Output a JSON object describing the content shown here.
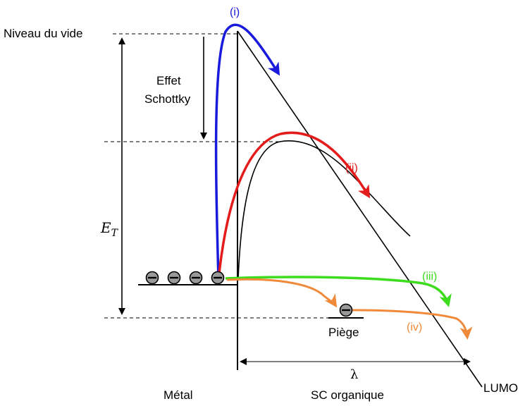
{
  "labels": {
    "vacuum_level": "Niveau du vide",
    "schottky_line1": "Effet",
    "schottky_line2": "Schottky",
    "energy_symbol": "E",
    "energy_subscript": "T",
    "trap": "Piège",
    "lambda": "λ",
    "lumo": "LUMO",
    "metal": "Métal",
    "organic_sc": "SC organique"
  },
  "processes": {
    "i": {
      "label": "(i)",
      "color": "#1a1adc"
    },
    "ii": {
      "label": "(ii)",
      "color": "#e41b1b"
    },
    "iii": {
      "label": "(iii)",
      "color": "#3ddc1e"
    },
    "iv": {
      "label": "(iv)",
      "color": "#f08a3a"
    }
  },
  "electron_symbol": "⊖"
}
